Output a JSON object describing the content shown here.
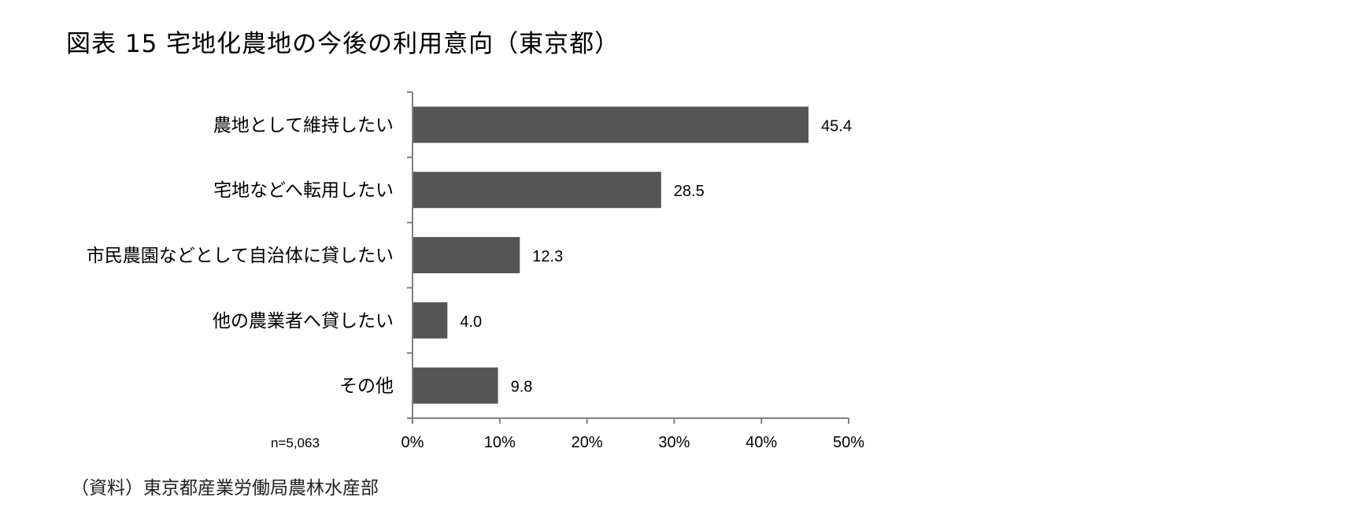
{
  "title": "図表 15  宅地化農地の今後の利用意向（東京都）",
  "sample_note": "n=5,063",
  "source": "（資料）東京都産業労働局農林水産部",
  "colors": {
    "bar": "#555555",
    "axis": "#808080"
  },
  "chart_data": {
    "type": "bar",
    "orientation": "horizontal",
    "categories": [
      "農地として維持したい",
      "宅地などへ転用したい",
      "市民農園などとして自治体に貸したい",
      "他の農業者へ貸したい",
      "その他"
    ],
    "values": [
      45.4,
      28.5,
      12.3,
      4.0,
      9.8
    ],
    "value_labels": [
      "45.4",
      "28.5",
      "12.3",
      "4.0",
      "9.8"
    ],
    "xlim": [
      0,
      50
    ],
    "xticks": [
      0,
      10,
      20,
      30,
      40,
      50
    ],
    "xtick_labels": [
      "0%",
      "10%",
      "20%",
      "30%",
      "40%",
      "50%"
    ],
    "grid": false,
    "legend": "none"
  }
}
